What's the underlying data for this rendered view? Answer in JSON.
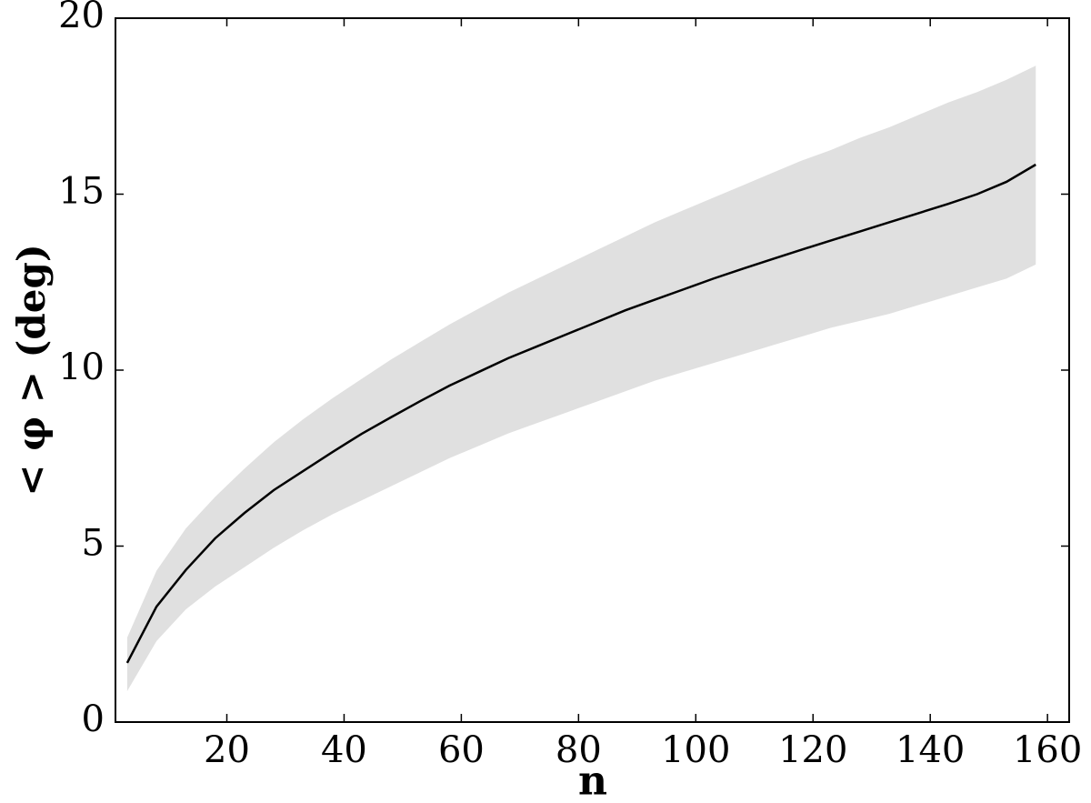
{
  "chart_data": {
    "type": "line",
    "xlabel": "n",
    "ylabel": "< φ > (deg)",
    "x": [
      3,
      8,
      13,
      18,
      23,
      28,
      33,
      38,
      43,
      48,
      53,
      58,
      63,
      68,
      73,
      78,
      83,
      88,
      93,
      98,
      103,
      108,
      113,
      118,
      123,
      128,
      133,
      138,
      143,
      148,
      153,
      158
    ],
    "series": [
      {
        "color": "#000000",
        "values": [
          1.68,
          3.28,
          4.32,
          5.22,
          5.94,
          6.59,
          7.13,
          7.67,
          8.19,
          8.66,
          9.12,
          9.56,
          9.95,
          10.34,
          10.68,
          11.02,
          11.36,
          11.7,
          12.0,
          12.3,
          12.6,
          12.88,
          13.15,
          13.42,
          13.68,
          13.94,
          14.2,
          14.46,
          14.72,
          15.0,
          15.35,
          15.84
        ]
      }
    ],
    "band": {
      "color": "#e0e0e0",
      "lower": [
        0.88,
        2.3,
        3.2,
        3.85,
        4.4,
        4.95,
        5.45,
        5.9,
        6.3,
        6.7,
        7.1,
        7.5,
        7.85,
        8.2,
        8.5,
        8.8,
        9.1,
        9.4,
        9.7,
        9.95,
        10.2,
        10.45,
        10.7,
        10.95,
        11.2,
        11.4,
        11.6,
        11.85,
        12.1,
        12.35,
        12.6,
        13.0
      ],
      "upper": [
        2.4,
        4.3,
        5.5,
        6.4,
        7.2,
        7.95,
        8.6,
        9.2,
        9.75,
        10.3,
        10.8,
        11.3,
        11.75,
        12.2,
        12.6,
        13.0,
        13.4,
        13.8,
        14.2,
        14.55,
        14.9,
        15.25,
        15.6,
        15.95,
        16.25,
        16.6,
        16.9,
        17.25,
        17.6,
        17.9,
        18.25,
        18.65
      ]
    },
    "xlim": [
      1,
      163.7
    ],
    "ylim": [
      0,
      20
    ],
    "xticks": [
      20,
      40,
      60,
      80,
      100,
      120,
      140,
      160
    ],
    "yticks": [
      0,
      5,
      10,
      15,
      20
    ]
  }
}
